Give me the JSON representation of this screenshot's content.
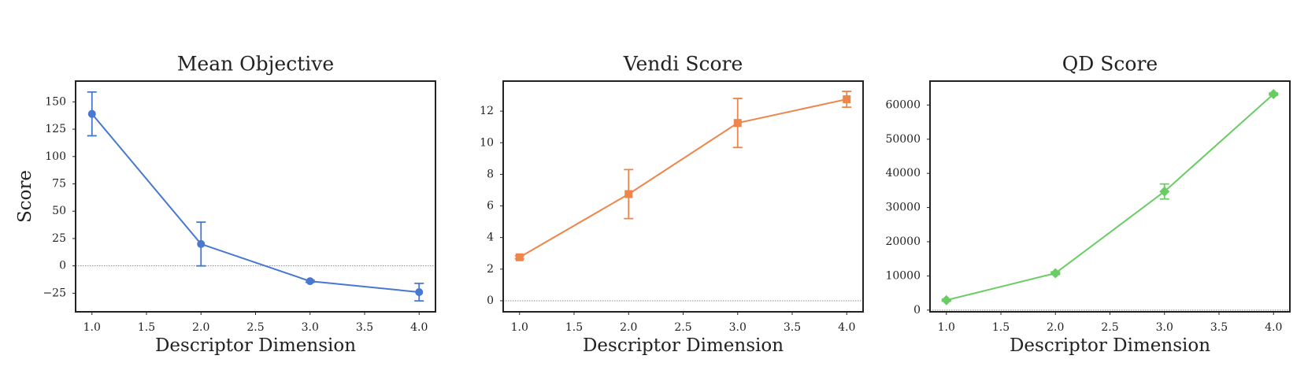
{
  "chart_data": [
    {
      "type": "line",
      "title": "Mean Objective",
      "xlabel": "Descriptor Dimension",
      "ylabel": "Score",
      "x": [
        1.0,
        2.0,
        3.0,
        4.0
      ],
      "series": [
        {
          "name": "Mean Objective",
          "color": "#4878d0",
          "marker": "circle",
          "values": [
            139,
            20,
            -14,
            -24
          ],
          "errors": [
            20,
            20,
            1,
            8
          ]
        }
      ],
      "xlim": [
        0.85,
        4.15
      ],
      "xticks": [
        {
          "value": 1,
          "label": "1.0"
        },
        1.5,
        {
          "value": 2,
          "label": "2.0"
        },
        2.5,
        {
          "value": 3,
          "label": "3.0"
        },
        3.5,
        {
          "value": 4,
          "label": "4.0"
        }
      ],
      "ylim": [
        -42,
        169
      ],
      "yticks": [
        {
          "value": -25,
          "label": "−25"
        },
        0,
        25,
        50,
        75,
        100,
        125,
        150
      ],
      "reference_line": 0
    },
    {
      "type": "line",
      "title": "Vendi Score",
      "xlabel": "Descriptor Dimension",
      "x": [
        1.0,
        2.0,
        3.0,
        4.0
      ],
      "series": [
        {
          "name": "Vendi Score",
          "color": "#ee854a",
          "marker": "square",
          "values": [
            2.75,
            6.75,
            11.25,
            12.75
          ],
          "errors": [
            0.1,
            1.55,
            1.55,
            0.5
          ]
        }
      ],
      "xlim": [
        0.85,
        4.15
      ],
      "xticks": [
        {
          "value": 1,
          "label": "1.0"
        },
        1.5,
        {
          "value": 2,
          "label": "2.0"
        },
        2.5,
        {
          "value": 3,
          "label": "3.0"
        },
        3.5,
        {
          "value": 4,
          "label": "4.0"
        }
      ],
      "ylim": [
        -0.7,
        13.9
      ],
      "yticks": [
        0,
        2,
        4,
        6,
        8,
        10,
        12
      ],
      "reference_line": 0
    },
    {
      "type": "line",
      "title": "QD Score",
      "xlabel": "Descriptor Dimension",
      "x": [
        1.0,
        2.0,
        3.0,
        4.0
      ],
      "series": [
        {
          "name": "QD Score",
          "color": "#6acc64",
          "marker": "diamond",
          "values": [
            2900,
            10800,
            34700,
            63200
          ],
          "errors": [
            300,
            400,
            2200,
            300
          ]
        }
      ],
      "xlim": [
        0.85,
        4.15
      ],
      "xticks": [
        {
          "value": 1,
          "label": "1.0"
        },
        1.5,
        {
          "value": 2,
          "label": "2.0"
        },
        2.5,
        {
          "value": 3,
          "label": "3.0"
        },
        3.5,
        {
          "value": 4,
          "label": "4.0"
        }
      ],
      "ylim": [
        -500,
        67000
      ],
      "yticks": [
        0,
        10000,
        20000,
        30000,
        40000,
        50000,
        60000
      ],
      "reference_line": 0
    }
  ]
}
